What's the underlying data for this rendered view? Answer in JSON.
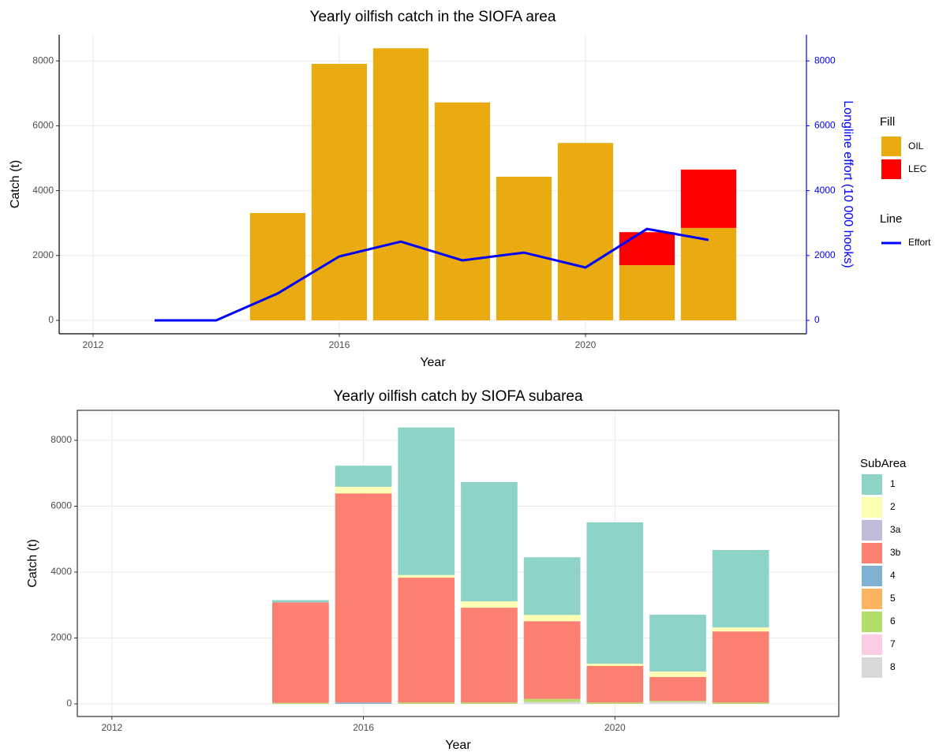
{
  "chart_data": [
    {
      "type": "bar",
      "title": "Yearly oilfish catch in the SIOFA area",
      "x_label": "Year",
      "y_label": "Catch (t)",
      "y2_label": "Longline effort (10 000 hooks)",
      "x": [
        2013,
        2014,
        2015,
        2016,
        2017,
        2018,
        2019,
        2020,
        2021,
        2022
      ],
      "series": [
        {
          "name": "OIL",
          "type": "bar",
          "color": "#eaab10",
          "values": [
            null,
            null,
            3310,
            7910,
            8390,
            6720,
            4430,
            5470,
            1700,
            2850
          ]
        },
        {
          "name": "LEC",
          "type": "bar",
          "color": "#ff0000",
          "values": [
            null,
            null,
            null,
            null,
            null,
            null,
            null,
            null,
            1020,
            1800
          ]
        },
        {
          "name": "Effort",
          "type": "line",
          "axis": "y2",
          "color": "#0000ff",
          "values": [
            0,
            0,
            830,
            1970,
            2430,
            1850,
            2090,
            1630,
            2820,
            2480
          ]
        }
      ],
      "fill_legend_title": "Fill",
      "line_legend_title": "Line",
      "xlim": [
        2011.45,
        2023.59
      ],
      "xticks": [
        2012,
        2016,
        2020
      ],
      "ylim": [
        -414,
        8808
      ],
      "yticks": [
        0,
        2000,
        4000,
        6000,
        8000
      ],
      "y2lim": [
        -414,
        8808
      ],
      "y2ticks": [
        0,
        2000,
        4000,
        6000,
        8000
      ],
      "y2_color": "#0000ff",
      "grid": true
    },
    {
      "type": "bar",
      "title": "Yearly oilfish catch by SIOFA subarea",
      "x_label": "Year",
      "y_label": "Catch (t)",
      "x": [
        2015,
        2016,
        2017,
        2018,
        2019,
        2020,
        2021,
        2022
      ],
      "legend_title": "SubArea",
      "series": [
        {
          "name": "1",
          "color": "#8dd3c7",
          "values": [
            70,
            640,
            4480,
            3620,
            1750,
            4290,
            1725,
            2350
          ]
        },
        {
          "name": "2",
          "color": "#ffffb3",
          "values": [
            null,
            200,
            80,
            190,
            190,
            70,
            165,
            120
          ]
        },
        {
          "name": "3a",
          "color": "#bebada",
          "values": [
            null,
            null,
            null,
            null,
            null,
            null,
            null,
            null
          ]
        },
        {
          "name": "3b",
          "color": "#fb8072",
          "values": [
            3050,
            6350,
            3790,
            2880,
            2360,
            1110,
            725,
            2160
          ]
        },
        {
          "name": "4",
          "color": "#80b1d3",
          "values": [
            null,
            40,
            null,
            null,
            null,
            null,
            null,
            null
          ]
        },
        {
          "name": "5",
          "color": "#fdb462",
          "values": [
            null,
            null,
            null,
            null,
            null,
            null,
            null,
            null
          ]
        },
        {
          "name": "6",
          "color": "#b3de69",
          "values": [
            30,
            null,
            40,
            40,
            90,
            40,
            30,
            40
          ]
        },
        {
          "name": "7",
          "color": "#fccde5",
          "values": [
            null,
            null,
            null,
            null,
            null,
            null,
            null,
            null
          ]
        },
        {
          "name": "8",
          "color": "#d9d9d9",
          "values": [
            null,
            null,
            null,
            null,
            60,
            null,
            60,
            null
          ]
        }
      ],
      "xlim": [
        2011.45,
        2023.56
      ],
      "xticks": [
        2012,
        2016,
        2020
      ],
      "ylim": [
        -383,
        8910
      ],
      "yticks": [
        0,
        2000,
        4000,
        6000,
        8000
      ],
      "grid": true
    }
  ]
}
